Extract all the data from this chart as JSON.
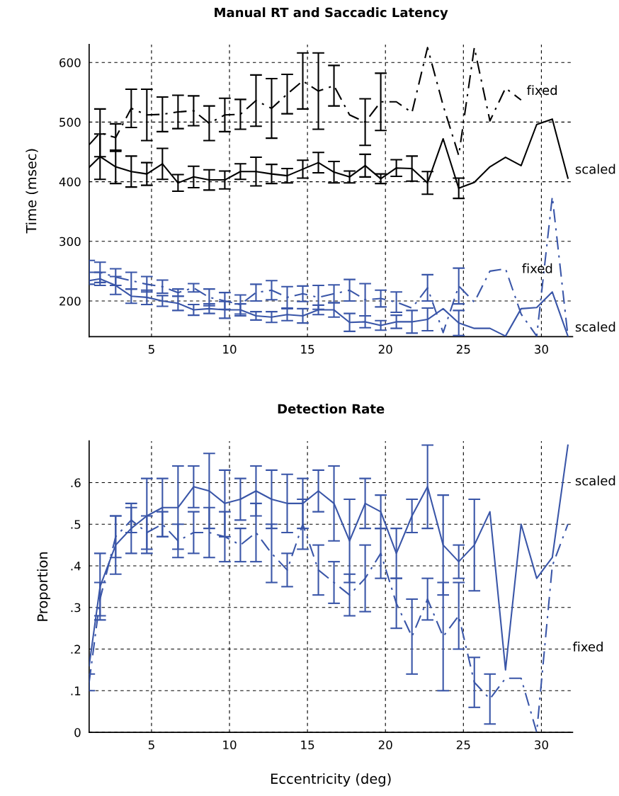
{
  "chart_data": [
    {
      "type": "line",
      "title": "Manual RT and Saccadic Latency",
      "ylabel": "Time (msec)",
      "grid": true,
      "x": [
        1,
        1.7,
        2.7,
        3.7,
        4.7,
        5.7,
        6.7,
        7.7,
        8.7,
        9.7,
        10.7,
        11.7,
        12.7,
        13.7,
        14.7,
        15.7,
        16.7,
        17.7,
        18.7,
        19.7,
        20.7,
        21.7,
        22.7,
        23.7,
        24.7,
        25.7,
        26.7,
        27.7,
        28.7,
        29.7,
        30.7,
        31.7
      ],
      "xlim": [
        1,
        32
      ],
      "xticks": [
        5,
        10,
        15,
        20,
        25,
        30
      ],
      "ylim": [
        140,
        630
      ],
      "yticks": [
        200,
        300,
        400,
        500,
        600
      ],
      "series": [
        {
          "name": "fixed",
          "color": "#000000",
          "line_style": "dashed",
          "values": [
            462,
            482,
            474,
            523,
            512,
            513,
            517,
            519,
            498,
            512,
            513,
            536,
            523,
            547,
            569,
            552,
            561,
            512,
            500,
            534,
            534,
            516,
            625,
            528,
            444,
            625,
            502,
            557,
            537,
            null,
            null,
            null
          ],
          "errors": [
            null,
            40,
            23,
            32,
            43,
            29,
            28,
            25,
            29,
            28,
            25,
            43,
            50,
            33,
            47,
            64,
            34,
            null,
            39,
            48,
            null,
            null,
            null,
            null,
            null,
            null,
            null,
            null,
            null,
            null,
            null,
            null
          ]
        },
        {
          "name": "scaled",
          "color": "#000000",
          "line_style": "solid",
          "values": [
            424,
            442,
            425,
            417,
            413,
            430,
            398,
            408,
            403,
            403,
            417,
            417,
            413,
            410,
            421,
            432,
            416,
            408,
            427,
            405,
            423,
            422,
            398,
            472,
            389,
            399,
            425,
            441,
            427,
            496,
            505,
            406
          ],
          "errors": [
            null,
            38,
            28,
            26,
            19,
            26,
            14,
            18,
            17,
            15,
            13,
            24,
            16,
            12,
            15,
            17,
            18,
            10,
            19,
            8,
            14,
            21,
            19,
            null,
            17,
            null,
            null,
            null,
            null,
            null,
            null,
            null
          ]
        },
        {
          "name": "fixed",
          "color": "#3a56a8",
          "line_style": "dashed",
          "values": [
            248,
            248,
            240,
            234,
            228,
            224,
            214,
            222,
            206,
            200,
            194,
            214,
            218,
            206,
            212,
            206,
            212,
            218,
            202,
            204,
            198,
            188,
            222,
            147,
            225,
            198,
            250,
            254,
            178,
            141,
            375,
            141
          ],
          "errors": [
            20,
            17,
            14,
            14,
            13,
            11,
            6,
            7,
            14,
            14,
            16,
            14,
            16,
            18,
            13,
            20,
            15,
            18,
            27,
            14,
            17,
            null,
            22,
            null,
            30,
            null,
            null,
            null,
            null,
            null,
            null,
            null
          ]
        },
        {
          "name": "scaled",
          "color": "#3a56a8",
          "line_style": "solid",
          "values": [
            234,
            237,
            226,
            208,
            206,
            200,
            196,
            185,
            187,
            185,
            185,
            175,
            173,
            177,
            175,
            185,
            185,
            164,
            165,
            159,
            165,
            165,
            169,
            187,
            163,
            154,
            154,
            141,
            187,
            189,
            215,
            141
          ],
          "errors": [
            null,
            11,
            15,
            12,
            12,
            9,
            12,
            9,
            8,
            14,
            10,
            7,
            9,
            10,
            12,
            8,
            12,
            15,
            10,
            8,
            11,
            19,
            19,
            null,
            21,
            null,
            null,
            null,
            null,
            null,
            null,
            null
          ]
        }
      ]
    },
    {
      "type": "line",
      "title": "Detection Rate",
      "xlabel": "Eccentricity (deg)",
      "ylabel": "Proportion",
      "grid": true,
      "x": [
        1,
        1.7,
        2.7,
        3.7,
        4.7,
        5.7,
        6.7,
        7.7,
        8.7,
        9.7,
        10.7,
        11.7,
        12.7,
        13.7,
        14.7,
        15.7,
        16.7,
        17.7,
        18.7,
        19.7,
        20.7,
        21.7,
        22.7,
        23.7,
        24.7,
        25.7,
        26.7,
        27.7,
        28.7,
        29.7,
        30.7,
        31.7
      ],
      "xlim": [
        1,
        32
      ],
      "xticks": [
        5,
        10,
        15,
        20,
        25,
        30
      ],
      "ylim": [
        0,
        0.7
      ],
      "yticks": [
        0,
        {
          "value": 0.1,
          "label": ".1"
        },
        {
          "value": 0.2,
          "label": ".2"
        },
        {
          "value": 0.3,
          "label": ".3"
        },
        {
          "value": 0.4,
          "label": ".4"
        },
        {
          "value": 0.5,
          "label": ".5"
        },
        {
          "value": 0.6,
          "label": ".6"
        }
      ],
      "series": [
        {
          "name": "scaled",
          "color": "#3a56a8",
          "line_style": "solid",
          "values": [
            0.16,
            0.35,
            0.45,
            0.49,
            0.52,
            0.54,
            0.54,
            0.59,
            0.58,
            0.55,
            0.56,
            0.58,
            0.56,
            0.55,
            0.55,
            0.58,
            0.55,
            0.46,
            0.55,
            0.53,
            0.43,
            0.52,
            0.59,
            0.45,
            0.41,
            0.45,
            0.53,
            0.15,
            0.5,
            0.37,
            0.42,
            0.69
          ],
          "errors": [
            null,
            0.08,
            0.07,
            0.06,
            0.09,
            0.07,
            0.1,
            0.05,
            0.09,
            0.08,
            0.05,
            0.06,
            0.07,
            0.07,
            0.06,
            0.05,
            0.09,
            0.1,
            0.06,
            0.04,
            0.06,
            0.04,
            0.1,
            0.12,
            0.04,
            0.11,
            null,
            null,
            null,
            null,
            null,
            null
          ]
        },
        {
          "name": "fixed",
          "color": "#3a56a8",
          "line_style": "dashed",
          "values": [
            0.12,
            0.32,
            0.47,
            0.51,
            0.48,
            0.5,
            0.46,
            0.48,
            0.48,
            0.47,
            0.45,
            0.48,
            0.43,
            0.39,
            0.5,
            0.39,
            0.36,
            0.33,
            0.37,
            0.43,
            0.31,
            0.23,
            0.32,
            0.23,
            0.28,
            0.12,
            0.08,
            0.13,
            0.13,
            0,
            0.4,
            0.5
          ],
          "errors": [
            0.02,
            0.04,
            0.05,
            0.03,
            0.04,
            0.03,
            0.04,
            0.05,
            0.06,
            0.06,
            0.04,
            0.07,
            0.07,
            0.04,
            0.06,
            0.06,
            0.05,
            0.05,
            0.08,
            0.06,
            0.06,
            0.09,
            0.05,
            0.13,
            0.08,
            0.06,
            0.06,
            null,
            null,
            null,
            null,
            null
          ]
        }
      ]
    }
  ]
}
